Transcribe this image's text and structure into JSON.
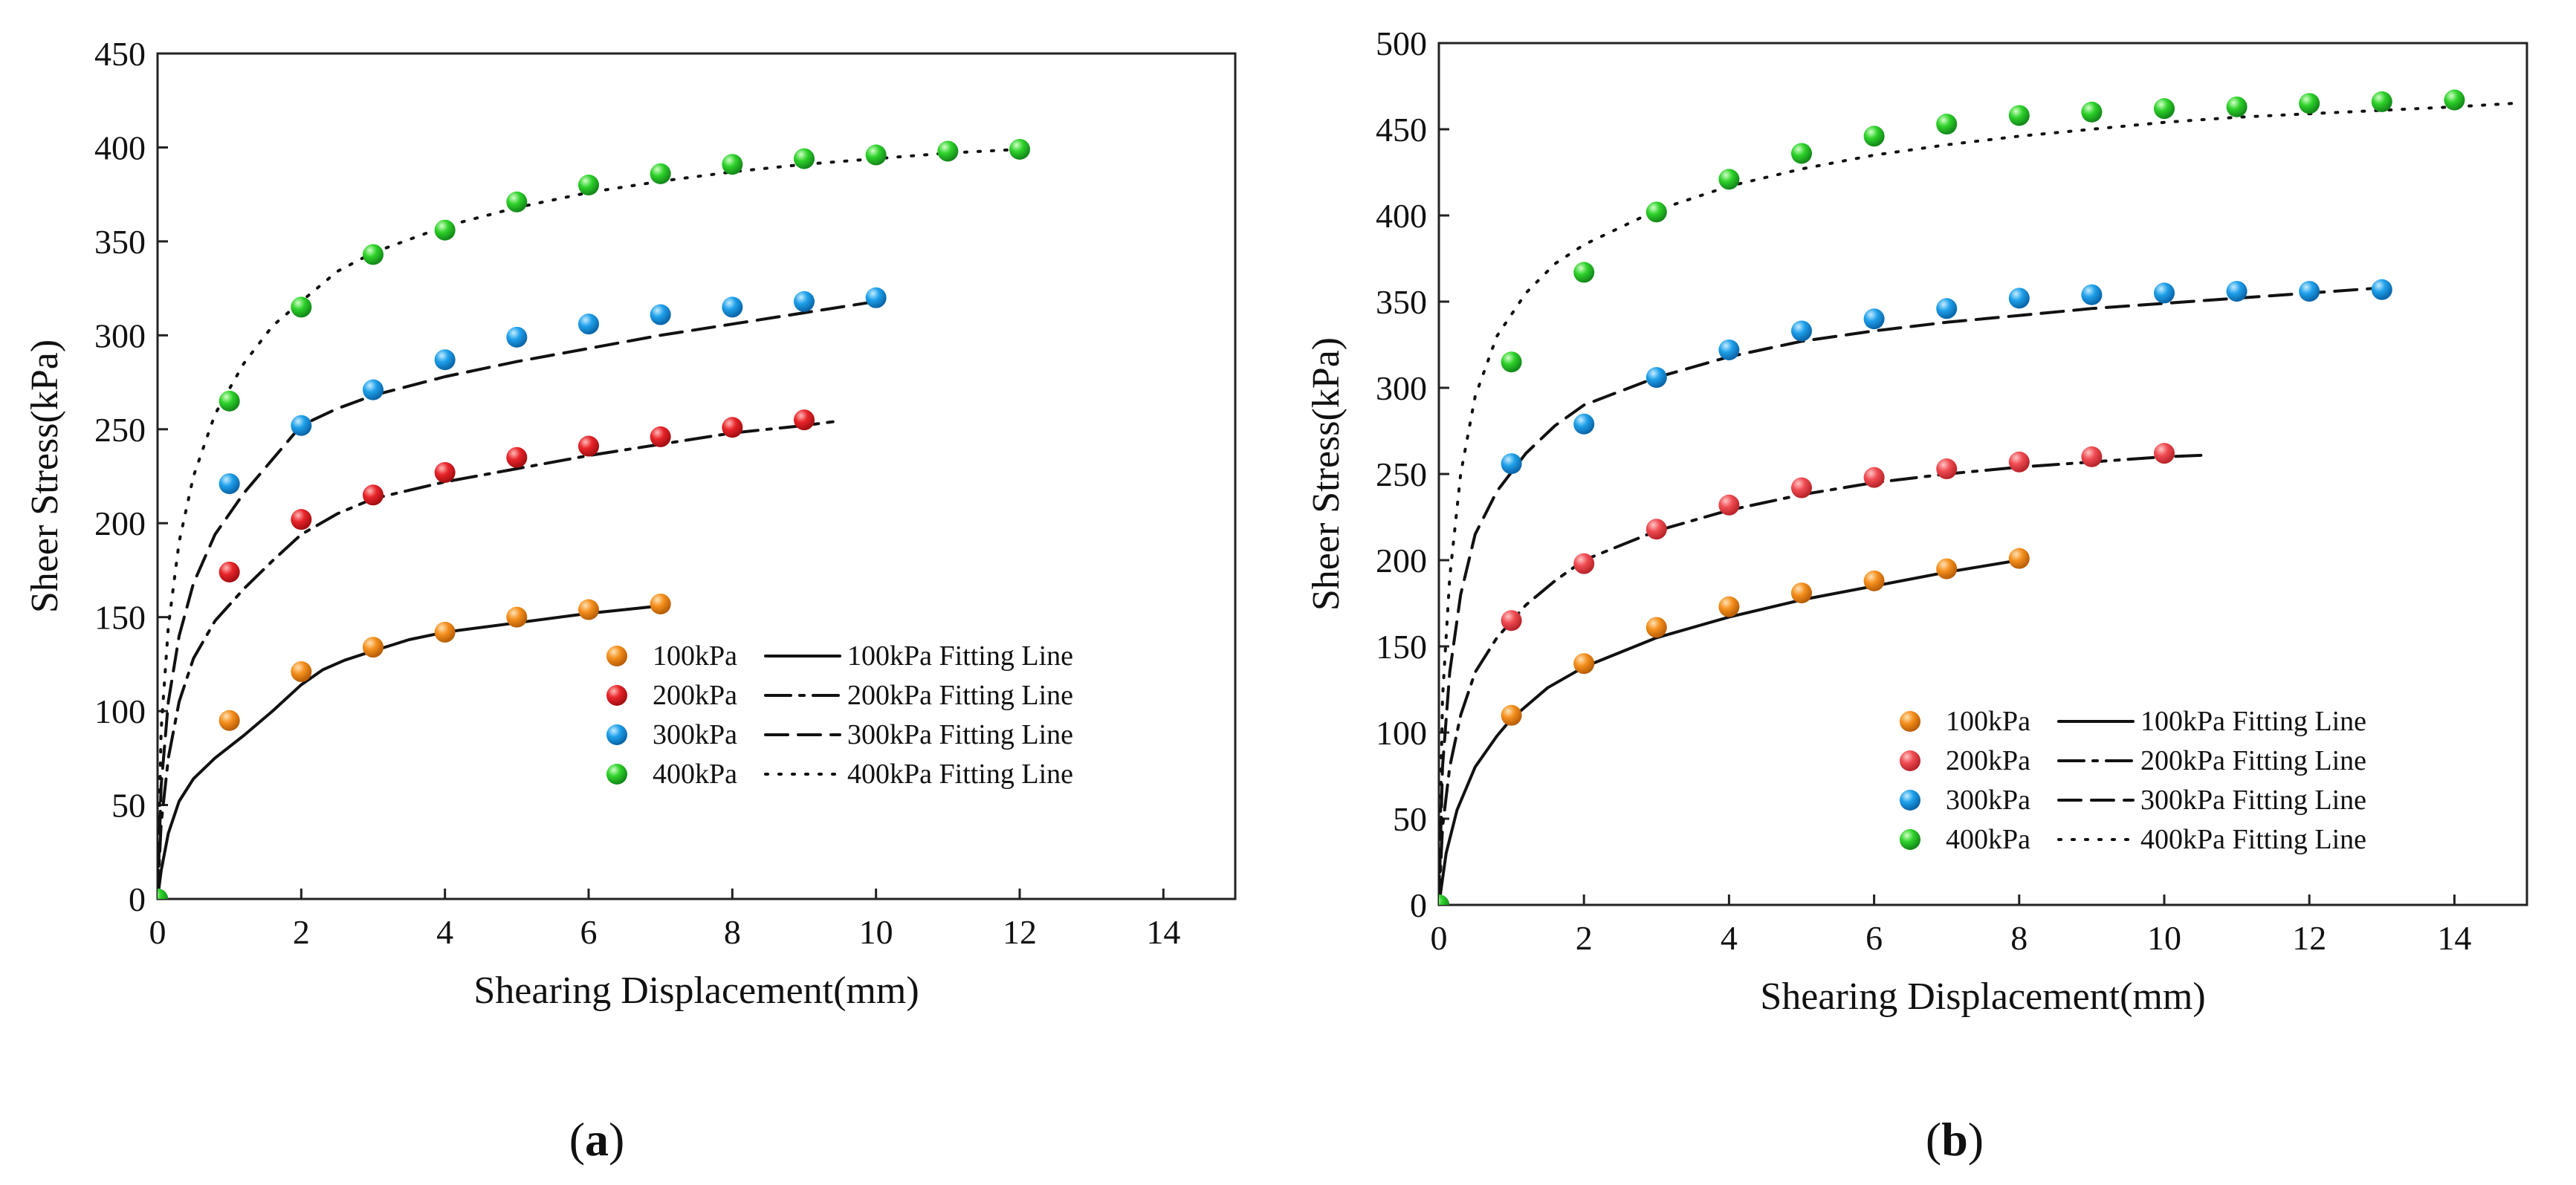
{
  "chart_data": [
    {
      "type": "scatter",
      "panel_label": "a",
      "xlabel": "Shearing Displacement(mm)",
      "ylabel": "Sheer Stress(kPa)",
      "xlim": [
        0,
        15
      ],
      "ylim": [
        0,
        450
      ],
      "xticks": [
        0,
        2,
        4,
        6,
        8,
        10,
        12,
        14
      ],
      "yticks": [
        0,
        50,
        100,
        150,
        200,
        250,
        300,
        350,
        400,
        450
      ],
      "legend_position": "bottom-right",
      "series": [
        {
          "name": "100kPa",
          "fit_name": "100kPa Fitting Line",
          "color": "#f5901e",
          "line_style": "solid",
          "points": [
            [
              0,
              0
            ],
            [
              1,
              95
            ],
            [
              2,
              121
            ],
            [
              3,
              134
            ],
            [
              4,
              142
            ],
            [
              5,
              150
            ],
            [
              6,
              154
            ],
            [
              7,
              157
            ]
          ],
          "fit": [
            [
              0,
              0
            ],
            [
              0.05,
              15
            ],
            [
              0.15,
              35
            ],
            [
              0.3,
              52
            ],
            [
              0.5,
              64
            ],
            [
              0.8,
              75
            ],
            [
              1.2,
              87
            ],
            [
              1.6,
              100
            ],
            [
              2,
              114
            ],
            [
              2.3,
              122
            ],
            [
              2.6,
              127
            ],
            [
              3,
              132
            ],
            [
              3.5,
              138
            ],
            [
              4,
              142
            ],
            [
              5,
              147
            ],
            [
              6,
              152
            ],
            [
              7,
              156
            ]
          ]
        },
        {
          "name": "200kPa",
          "fit_name": "200kPa Fitting Line",
          "color": "#e8252a",
          "line_style": "dashdot",
          "points": [
            [
              0,
              0
            ],
            [
              1,
              174
            ],
            [
              2,
              202
            ],
            [
              3,
              215
            ],
            [
              4,
              227
            ],
            [
              5,
              235
            ],
            [
              6,
              241
            ],
            [
              7,
              246
            ],
            [
              8,
              251
            ],
            [
              9,
              255
            ]
          ],
          "fit": [
            [
              0,
              0
            ],
            [
              0.05,
              40
            ],
            [
              0.15,
              75
            ],
            [
              0.3,
              105
            ],
            [
              0.5,
              128
            ],
            [
              0.8,
              148
            ],
            [
              1.2,
              165
            ],
            [
              1.6,
              180
            ],
            [
              2,
              194
            ],
            [
              2.5,
              205
            ],
            [
              3,
              213
            ],
            [
              4,
              222
            ],
            [
              5,
              229
            ],
            [
              6,
              236
            ],
            [
              7,
              242
            ],
            [
              8,
              248
            ],
            [
              9,
              252
            ],
            [
              9.4,
              254
            ]
          ]
        },
        {
          "name": "300kPa",
          "fit_name": "300kPa Fitting Line",
          "color": "#1ea0ea",
          "line_style": "dashed",
          "points": [
            [
              0,
              0
            ],
            [
              1,
              221
            ],
            [
              2,
              252
            ],
            [
              3,
              271
            ],
            [
              4,
              287
            ],
            [
              5,
              299
            ],
            [
              6,
              306
            ],
            [
              7,
              311
            ],
            [
              8,
              315
            ],
            [
              9,
              318
            ],
            [
              10,
              320
            ]
          ],
          "fit": [
            [
              0,
              0
            ],
            [
              0.05,
              60
            ],
            [
              0.15,
              105
            ],
            [
              0.3,
              140
            ],
            [
              0.5,
              168
            ],
            [
              0.8,
              194
            ],
            [
              1.2,
              216
            ],
            [
              1.6,
              234
            ],
            [
              2,
              252
            ],
            [
              2.5,
              261
            ],
            [
              3,
              268
            ],
            [
              4,
              278
            ],
            [
              5,
              286
            ],
            [
              6,
              293
            ],
            [
              7,
              300
            ],
            [
              8,
              306
            ],
            [
              9,
              312
            ],
            [
              10,
              318
            ]
          ]
        },
        {
          "name": "400kPa",
          "fit_name": "400kPa Fitting Line",
          "color": "#2ed22a",
          "line_style": "dotted",
          "points": [
            [
              0,
              0
            ],
            [
              1,
              265
            ],
            [
              2,
              315
            ],
            [
              3,
              343
            ],
            [
              4,
              356
            ],
            [
              5,
              371
            ],
            [
              6,
              380
            ],
            [
              7,
              386
            ],
            [
              8,
              391
            ],
            [
              9,
              394
            ],
            [
              10,
              396
            ],
            [
              11,
              398
            ],
            [
              12,
              399
            ]
          ],
          "fit": [
            [
              0,
              0
            ],
            [
              0.05,
              90
            ],
            [
              0.15,
              145
            ],
            [
              0.3,
              190
            ],
            [
              0.5,
              225
            ],
            [
              0.8,
              258
            ],
            [
              1.2,
              285
            ],
            [
              1.6,
              305
            ],
            [
              2,
              318
            ],
            [
              2.5,
              334
            ],
            [
              3,
              344
            ],
            [
              4,
              358
            ],
            [
              5,
              368
            ],
            [
              6,
              376
            ],
            [
              7,
              382
            ],
            [
              8,
              387
            ],
            [
              9,
              391
            ],
            [
              10,
              394
            ],
            [
              11,
              397
            ],
            [
              12,
              399
            ]
          ]
        }
      ]
    },
    {
      "type": "scatter",
      "panel_label": "b",
      "xlabel": "Shearing Displacement(mm)",
      "ylabel": "Sheer Stress(kPa)",
      "xlim": [
        0,
        15
      ],
      "ylim": [
        0,
        500
      ],
      "xticks": [
        0,
        2,
        4,
        6,
        8,
        10,
        12,
        14
      ],
      "yticks": [
        0,
        50,
        100,
        150,
        200,
        250,
        300,
        350,
        400,
        450,
        500
      ],
      "legend_position": "bottom-right",
      "series": [
        {
          "name": "100kPa",
          "fit_name": "100kPa Fitting Line",
          "color": "#f5901e",
          "line_style": "solid",
          "points": [
            [
              0,
              0
            ],
            [
              1,
              110
            ],
            [
              2,
              140
            ],
            [
              3,
              161
            ],
            [
              4,
              173
            ],
            [
              5,
              181
            ],
            [
              6,
              188
            ],
            [
              7,
              195
            ],
            [
              8,
              201
            ]
          ],
          "fit": [
            [
              0,
              0
            ],
            [
              0.1,
              30
            ],
            [
              0.25,
              55
            ],
            [
              0.5,
              80
            ],
            [
              0.8,
              98
            ],
            [
              1,
              108
            ],
            [
              1.5,
              126
            ],
            [
              2,
              138
            ],
            [
              3,
              155
            ],
            [
              4,
              167
            ],
            [
              5,
              177
            ],
            [
              6,
              185
            ],
            [
              7,
              193
            ],
            [
              8,
              200
            ]
          ]
        },
        {
          "name": "200kPa",
          "fit_name": "200kPa Fitting Line",
          "color": "#ef4c52",
          "line_style": "dashdot",
          "points": [
            [
              0,
              0
            ],
            [
              1,
              165
            ],
            [
              2,
              198
            ],
            [
              3,
              218
            ],
            [
              4,
              232
            ],
            [
              5,
              242
            ],
            [
              6,
              248
            ],
            [
              7,
              253
            ],
            [
              8,
              257
            ],
            [
              9,
              260
            ],
            [
              10,
              262
            ]
          ],
          "fit": [
            [
              0,
              0
            ],
            [
              0.05,
              45
            ],
            [
              0.15,
              80
            ],
            [
              0.3,
              110
            ],
            [
              0.5,
              135
            ],
            [
              0.8,
              155
            ],
            [
              1.2,
              174
            ],
            [
              1.6,
              188
            ],
            [
              2,
              200
            ],
            [
              3,
              217
            ],
            [
              4,
              229
            ],
            [
              5,
              238
            ],
            [
              6,
              245
            ],
            [
              7,
              250
            ],
            [
              8,
              254
            ],
            [
              9,
              257
            ],
            [
              10,
              260
            ],
            [
              10.6,
              261
            ]
          ]
        },
        {
          "name": "300kPa",
          "fit_name": "300kPa Fitting Line",
          "color": "#1ea0ea",
          "line_style": "dashed",
          "points": [
            [
              0,
              0
            ],
            [
              1,
              256
            ],
            [
              2,
              279
            ],
            [
              3,
              306
            ],
            [
              4,
              322
            ],
            [
              5,
              333
            ],
            [
              6,
              340
            ],
            [
              7,
              346
            ],
            [
              8,
              352
            ],
            [
              9,
              354
            ],
            [
              10,
              355
            ],
            [
              11,
              356
            ],
            [
              12,
              356
            ],
            [
              13,
              357
            ]
          ],
          "fit": [
            [
              0,
              0
            ],
            [
              0.05,
              80
            ],
            [
              0.15,
              135
            ],
            [
              0.3,
              180
            ],
            [
              0.5,
              215
            ],
            [
              0.8,
              240
            ],
            [
              1.2,
              262
            ],
            [
              1.6,
              278
            ],
            [
              2,
              290
            ],
            [
              3,
              306
            ],
            [
              4,
              318
            ],
            [
              5,
              327
            ],
            [
              6,
              333
            ],
            [
              7,
              338
            ],
            [
              8,
              342
            ],
            [
              9,
              346
            ],
            [
              10,
              349
            ],
            [
              11,
              352
            ],
            [
              12,
              355
            ],
            [
              13,
              358
            ]
          ]
        },
        {
          "name": "400kPa",
          "fit_name": "400kPa Fitting Line",
          "color": "#2ed22a",
          "line_style": "dotted",
          "points": [
            [
              0,
              0
            ],
            [
              1,
              315
            ],
            [
              2,
              367
            ],
            [
              3,
              402
            ],
            [
              4,
              421
            ],
            [
              5,
              436
            ],
            [
              6,
              446
            ],
            [
              7,
              453
            ],
            [
              8,
              458
            ],
            [
              9,
              460
            ],
            [
              10,
              462
            ],
            [
              11,
              463
            ],
            [
              12,
              465
            ],
            [
              13,
              466
            ],
            [
              14,
              467
            ]
          ],
          "fit": [
            [
              0,
              0
            ],
            [
              0.05,
              120
            ],
            [
              0.15,
              190
            ],
            [
              0.3,
              250
            ],
            [
              0.5,
              295
            ],
            [
              0.8,
              330
            ],
            [
              1.2,
              355
            ],
            [
              1.6,
              372
            ],
            [
              2,
              383
            ],
            [
              3,
              403
            ],
            [
              4,
              417
            ],
            [
              5,
              427
            ],
            [
              6,
              435
            ],
            [
              7,
              441
            ],
            [
              8,
              446
            ],
            [
              9,
              450
            ],
            [
              10,
              454
            ],
            [
              11,
              457
            ],
            [
              12,
              459
            ],
            [
              13,
              461
            ],
            [
              14,
              463
            ],
            [
              14.8,
              465
            ]
          ]
        }
      ]
    }
  ]
}
